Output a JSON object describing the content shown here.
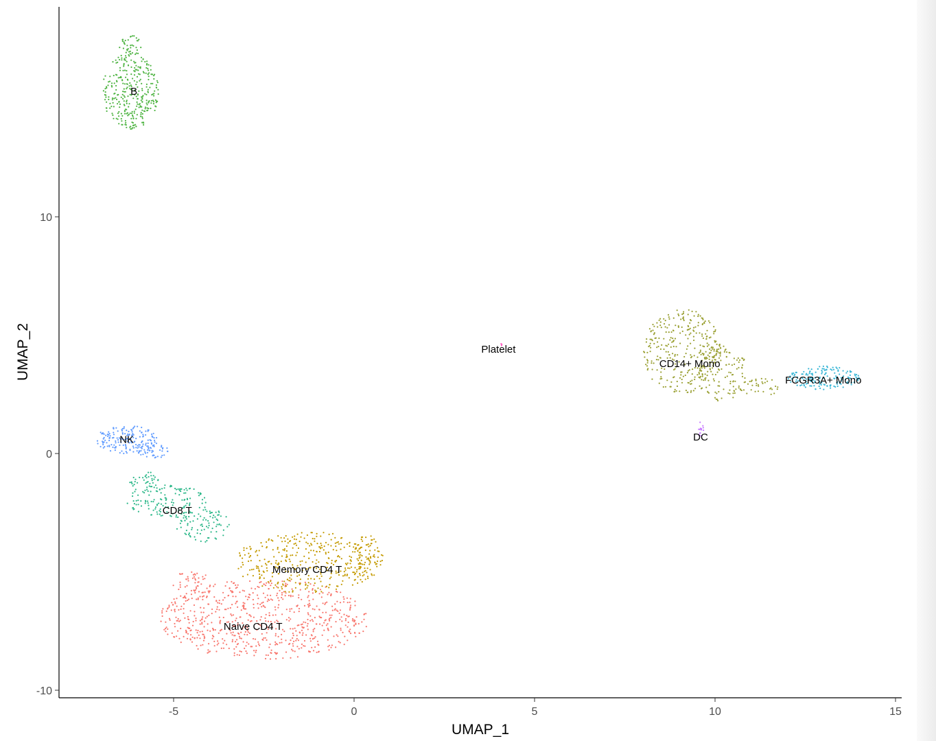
{
  "chart_data": {
    "type": "scatter",
    "title": "",
    "xlabel": "UMAP_1",
    "ylabel": "UMAP_2",
    "xlim": [
      -8.2,
      15.2
    ],
    "ylim": [
      -10.4,
      18.9
    ],
    "xticks": [
      -5,
      0,
      5,
      10,
      15
    ],
    "yticks": [
      -10,
      0,
      10
    ],
    "grid": false,
    "legend": "none",
    "clusters": [
      {
        "label": "Naive CD4 T",
        "color": "#F8766D",
        "label_x": -2.8,
        "label_y": -7.3,
        "n": 760,
        "blobs": [
          {
            "cx": -2.5,
            "cy": -7.0,
            "rx": 2.9,
            "ry": 1.7
          },
          {
            "cx": -4.5,
            "cy": -5.6,
            "rx": 0.55,
            "ry": 0.7
          }
        ]
      },
      {
        "label": "Memory CD4 T",
        "color": "#C49A00",
        "label_x": -1.3,
        "label_y": -4.9,
        "n": 440,
        "blobs": [
          {
            "cx": -1.3,
            "cy": -4.6,
            "rx": 2.0,
            "ry": 1.3
          },
          {
            "cx": 0.3,
            "cy": -4.4,
            "rx": 0.5,
            "ry": 1.0
          }
        ]
      },
      {
        "label": "CD8 T",
        "color": "#53B400",
        "label_x": -4.9,
        "label_y": -2.4,
        "n": 0,
        "blobs": []
      },
      {
        "label": "CD8 T",
        "color": "#2DB88A",
        "label_x": -4.9,
        "label_y": -2.4,
        "n": 270,
        "blobs": [
          {
            "cx": -5.2,
            "cy": -2.0,
            "rx": 1.1,
            "ry": 0.7
          },
          {
            "cx": -4.2,
            "cy": -3.0,
            "rx": 0.75,
            "ry": 0.75
          },
          {
            "cx": -5.8,
            "cy": -1.2,
            "rx": 0.45,
            "ry": 0.45
          }
        ]
      },
      {
        "label": "NK",
        "color": "#619CFF",
        "label_x": -6.3,
        "label_y": 0.6,
        "n": 210,
        "blobs": [
          {
            "cx": -6.3,
            "cy": 0.6,
            "rx": 0.9,
            "ry": 0.6
          },
          {
            "cx": -5.6,
            "cy": 0.1,
            "rx": 0.45,
            "ry": 0.35
          }
        ]
      },
      {
        "label": "B",
        "color": "#4FB443",
        "label_x": -6.1,
        "label_y": 15.3,
        "n": 360,
        "blobs": [
          {
            "cx": -6.2,
            "cy": 15.3,
            "rx": 0.8,
            "ry": 1.6
          },
          {
            "cx": -6.2,
            "cy": 17.2,
            "rx": 0.3,
            "ry": 0.5
          }
        ]
      },
      {
        "label": "CD14+ Mono",
        "color": "#9AA033",
        "label_x": 9.3,
        "label_y": 3.8,
        "n": 470,
        "blobs": [
          {
            "cx": 9.1,
            "cy": 4.3,
            "rx": 1.1,
            "ry": 1.8
          },
          {
            "cx": 10.2,
            "cy": 3.4,
            "rx": 0.7,
            "ry": 1.2
          },
          {
            "cx": 11.2,
            "cy": 2.8,
            "rx": 0.6,
            "ry": 0.4
          }
        ]
      },
      {
        "label": "FCGR3A+ Mono",
        "color": "#38B6D6",
        "label_x": 13.0,
        "label_y": 3.1,
        "n": 160,
        "blobs": [
          {
            "cx": 13.0,
            "cy": 3.2,
            "rx": 1.0,
            "ry": 0.5
          }
        ]
      },
      {
        "label": "DC",
        "color": "#C77CFF",
        "label_x": 9.6,
        "label_y": 0.7,
        "n": 14,
        "blobs": [
          {
            "cx": 9.6,
            "cy": 1.0,
            "rx": 0.08,
            "ry": 0.35
          }
        ]
      },
      {
        "label": "Platelet",
        "color": "#FF61C3",
        "label_x": 4.0,
        "label_y": 4.4,
        "n": 3,
        "blobs": [
          {
            "cx": 4.1,
            "cy": 4.6,
            "rx": 0.05,
            "ry": 0.05
          }
        ]
      }
    ]
  }
}
